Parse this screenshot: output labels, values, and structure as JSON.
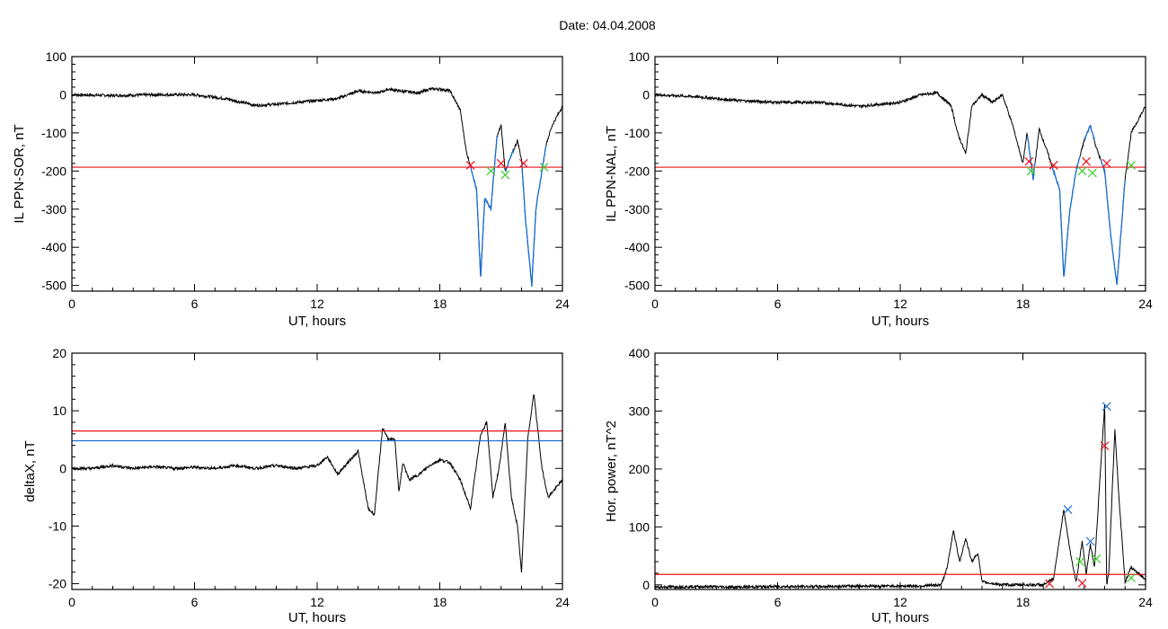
{
  "figure": {
    "title": "Date:  04.04.2008"
  },
  "colors": {
    "trace": "#000000",
    "threshold_red": "#e8121a",
    "threshold_blue": "#1a6fd4",
    "marker_red": "#e8121a",
    "marker_green": "#3ccc2a",
    "marker_blue": "#1a6fd4",
    "highlight_blue": "#1a6fd4"
  },
  "chart_data": [
    {
      "type": "line",
      "xlabel": "UT, hours",
      "ylabel": "IL PPN-SOR, nT",
      "xlim": [
        0,
        24
      ],
      "ylim": [
        -515,
        100
      ],
      "xticks": [
        "0",
        "6",
        "12",
        "18",
        "24"
      ],
      "yticks": [
        "100",
        "0",
        "-100",
        "-200",
        "-300",
        "-400",
        "-500"
      ],
      "threshold_red": -190,
      "series": [
        {
          "x": [
            0,
            2,
            4,
            6,
            7.5,
            9,
            10,
            11,
            12,
            13,
            14,
            15,
            15.5,
            16,
            17,
            17.5,
            18,
            18.5,
            19,
            19.3,
            19.5,
            19.8,
            20,
            20.2,
            20.5,
            20.8,
            21,
            21.2,
            21.5,
            21.8,
            22,
            22.2,
            22.5,
            22.7,
            23,
            23.2,
            23.5,
            24
          ],
          "y": [
            0,
            -2,
            0,
            0,
            -10,
            -28,
            -25,
            -20,
            -15,
            -10,
            10,
            5,
            15,
            10,
            5,
            15,
            15,
            10,
            -40,
            -150,
            -185,
            -250,
            -480,
            -270,
            -300,
            -110,
            -80,
            -200,
            -160,
            -120,
            -170,
            -330,
            -500,
            -300,
            -200,
            -130,
            -80,
            -30
          ]
        }
      ],
      "highlight_x": [
        [
          19.5,
          20.8
        ],
        [
          21.2,
          21.6
        ],
        [
          22.0,
          23.2
        ]
      ],
      "markers": [
        {
          "color": "red",
          "x": [
            19.5,
            21.0,
            22.1
          ],
          "y": [
            -185,
            -180,
            -180
          ]
        },
        {
          "color": "green",
          "x": [
            20.5,
            21.2,
            23.1
          ],
          "y": [
            -200,
            -210,
            -190
          ]
        }
      ]
    },
    {
      "type": "line",
      "xlabel": "UT, hours",
      "ylabel": "IL PPN-NAL, nT",
      "xlim": [
        0,
        24
      ],
      "ylim": [
        -515,
        100
      ],
      "xticks": [
        "0",
        "6",
        "12",
        "18",
        "24"
      ],
      "yticks": [
        "100",
        "0",
        "-100",
        "-200",
        "-300",
        "-400",
        "-500"
      ],
      "threshold_red": -190,
      "series": [
        {
          "x": [
            0,
            2,
            4,
            6,
            8,
            10,
            12,
            13,
            13.8,
            14.5,
            14.8,
            15.2,
            15.5,
            16,
            16.5,
            17,
            17.5,
            18,
            18.2,
            18.5,
            18.8,
            19.2,
            19.5,
            19.8,
            20,
            20.3,
            20.6,
            21,
            21.3,
            21.6,
            22,
            22.3,
            22.6,
            23,
            23.3,
            24
          ],
          "y": [
            0,
            -5,
            -15,
            -20,
            -20,
            -30,
            -20,
            0,
            5,
            -30,
            -100,
            -155,
            -30,
            0,
            -20,
            0,
            -80,
            -180,
            -100,
            -220,
            -90,
            -150,
            -200,
            -250,
            -480,
            -300,
            -200,
            -120,
            -80,
            -140,
            -200,
            -370,
            -500,
            -220,
            -100,
            -30
          ]
        }
      ],
      "highlight_x": [
        [
          18.2,
          18.6
        ],
        [
          19.4,
          20.8
        ],
        [
          21.0,
          21.5
        ],
        [
          21.8,
          23.0
        ]
      ],
      "markers": [
        {
          "color": "red",
          "x": [
            18.3,
            19.5,
            21.1,
            22.1
          ],
          "y": [
            -175,
            -185,
            -175,
            -180
          ]
        },
        {
          "color": "green",
          "x": [
            18.4,
            20.9,
            21.4,
            23.3
          ],
          "y": [
            -200,
            -200,
            -205,
            -185
          ]
        }
      ]
    },
    {
      "type": "line",
      "xlabel": "UT, hours",
      "ylabel": "deltaX, nT",
      "xlim": [
        0,
        24
      ],
      "ylim": [
        -21,
        20
      ],
      "xticks": [
        "0",
        "6",
        "12",
        "18",
        "24"
      ],
      "yticks": [
        "20",
        "10",
        "0",
        "-10",
        "-20"
      ],
      "threshold_red": 6.5,
      "threshold_blue": 4.8,
      "series": [
        {
          "x": [
            0,
            1,
            2,
            3,
            4,
            5,
            6,
            7,
            8,
            9,
            10,
            11,
            12,
            12.5,
            13,
            13.5,
            14,
            14.5,
            14.8,
            15.2,
            15.5,
            15.8,
            16,
            16.2,
            16.5,
            17,
            17.5,
            18,
            18.5,
            19,
            19.5,
            20,
            20.3,
            20.6,
            20.9,
            21.2,
            21.5,
            21.8,
            22,
            22.3,
            22.6,
            23,
            23.3,
            24
          ],
          "y": [
            0,
            0,
            0.5,
            0,
            0.3,
            0,
            0.2,
            0,
            0.5,
            0,
            0.5,
            0,
            0.5,
            2,
            -1,
            1,
            3,
            -7,
            -8,
            7,
            5,
            5,
            -4,
            1,
            -2,
            -1,
            0.5,
            1.5,
            1,
            -2,
            -7,
            6,
            8,
            -5,
            0,
            8,
            -5,
            -10,
            -18,
            5,
            13,
            0,
            -5,
            -2
          ]
        }
      ]
    },
    {
      "type": "line",
      "xlabel": "UT, hours",
      "ylabel": "Hor. power, nT^2",
      "xlim": [
        0,
        24
      ],
      "ylim": [
        -8,
        400
      ],
      "xticks": [
        "0",
        "6",
        "12",
        "18",
        "24"
      ],
      "yticks": [
        "400",
        "300",
        "200",
        "100",
        "0"
      ],
      "threshold_red": 18,
      "series": [
        {
          "x": [
            0,
            2,
            4,
            6,
            8,
            10,
            12,
            13,
            14,
            14.3,
            14.6,
            14.9,
            15.2,
            15.5,
            15.8,
            16,
            17,
            18,
            19,
            19.5,
            20,
            20.3,
            20.6,
            20.9,
            21.1,
            21.3,
            21.5,
            21.8,
            22,
            22.1,
            22.2,
            22.5,
            22.7,
            23,
            23.3,
            24
          ],
          "y": [
            -4,
            -3,
            -4,
            -3,
            -3,
            -2,
            -2,
            -2,
            0,
            30,
            95,
            40,
            80,
            40,
            55,
            5,
            0,
            0,
            0,
            10,
            130,
            60,
            5,
            75,
            20,
            70,
            30,
            200,
            310,
            0,
            20,
            270,
            150,
            5,
            30,
            10
          ]
        }
      ],
      "markers": [
        {
          "color": "red",
          "x": [
            19.3,
            20.9,
            22.0
          ],
          "y": [
            2,
            3,
            240
          ]
        },
        {
          "color": "blue",
          "x": [
            20.2,
            21.3,
            22.1
          ],
          "y": [
            130,
            75,
            308
          ]
        },
        {
          "color": "green",
          "x": [
            20.8,
            21.6,
            23.3
          ],
          "y": [
            40,
            45,
            12
          ]
        }
      ]
    }
  ]
}
